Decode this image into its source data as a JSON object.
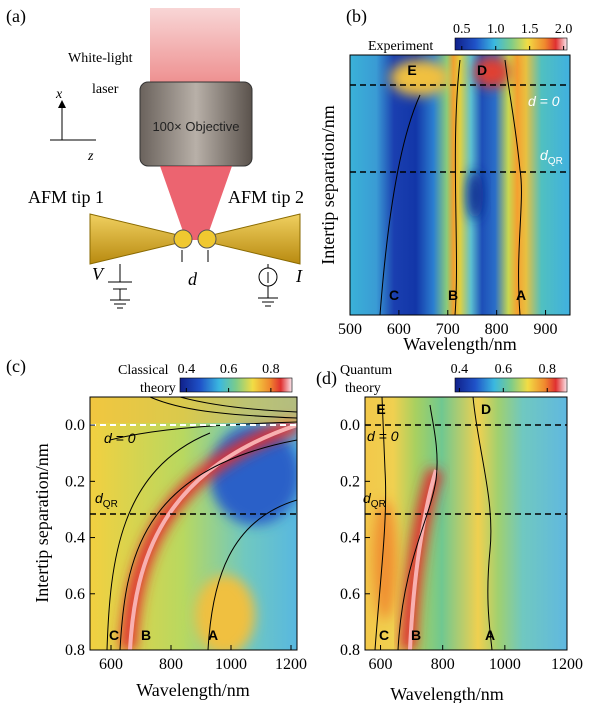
{
  "figure": {
    "a": {
      "label": "(a)",
      "laser_line1": "White-light",
      "laser_line2": "laser",
      "objective": "100× Objective",
      "tip1": "AFM tip 1",
      "tip2": "AFM tip 2",
      "voltage": "V",
      "gap": "d",
      "current": "I",
      "axis_x": "x",
      "axis_z": "z"
    },
    "b": {
      "label": "(b)",
      "colorbar": {
        "title": "Experiment",
        "lim": [
          0.4,
          2.05
        ],
        "ticks": [
          0.5,
          {
            "value": 1,
            "label": "1.0"
          },
          1.5,
          {
            "value": 2,
            "label": "2.0"
          }
        ]
      },
      "xlabel": "Wavelength/nm",
      "ylabel": "Intertip separation/nm",
      "xlim": [
        500,
        950
      ],
      "xticks": [
        500,
        600,
        700,
        800,
        900
      ],
      "modes": [
        "E",
        "D",
        "C",
        "B",
        "A"
      ],
      "zero_label": "d = 0",
      "dqr": {
        "main": "d",
        "sub": "QR"
      }
    },
    "c": {
      "label": "(c)",
      "colorbar": {
        "title_lines": [
          "Classical",
          "theory"
        ],
        "lim": [
          0.37,
          0.9
        ],
        "ticks": [
          0.4,
          0.6,
          0.8
        ]
      },
      "xlabel": "Wavelength/nm",
      "ylabel": "Intertip separation/nm",
      "xlim": [
        530,
        1220
      ],
      "xticks": [
        600,
        800,
        1000,
        1200
      ],
      "ylim": [
        -0.1,
        0.8
      ],
      "yticks": [
        {
          "value": 0,
          "label": "0.0"
        },
        0.2,
        0.4,
        0.6,
        0.8
      ],
      "modes": [
        "C",
        "B",
        "A"
      ],
      "zero_label": "d = 0",
      "dqr": {
        "main": "d",
        "sub": "QR"
      }
    },
    "d": {
      "label": "(d)",
      "colorbar": {
        "title_lines": [
          "Quantum",
          "theory"
        ],
        "lim": [
          0.38,
          0.89
        ],
        "ticks": [
          0.4,
          0.6,
          0.8
        ]
      },
      "xlabel": "Wavelength/nm",
      "xlim": [
        550,
        1200
      ],
      "xticks": [
        600,
        800,
        1000,
        1200
      ],
      "ylim": [
        -0.1,
        0.8
      ],
      "yticks": [
        {
          "value": 0,
          "label": "0.0"
        },
        0.2,
        0.4,
        0.6,
        0.8
      ],
      "modes": [
        "E",
        "D",
        "C",
        "B",
        "A"
      ],
      "zero_label": "d = 0",
      "dqr": {
        "main": "d",
        "sub": "QR"
      }
    }
  }
}
